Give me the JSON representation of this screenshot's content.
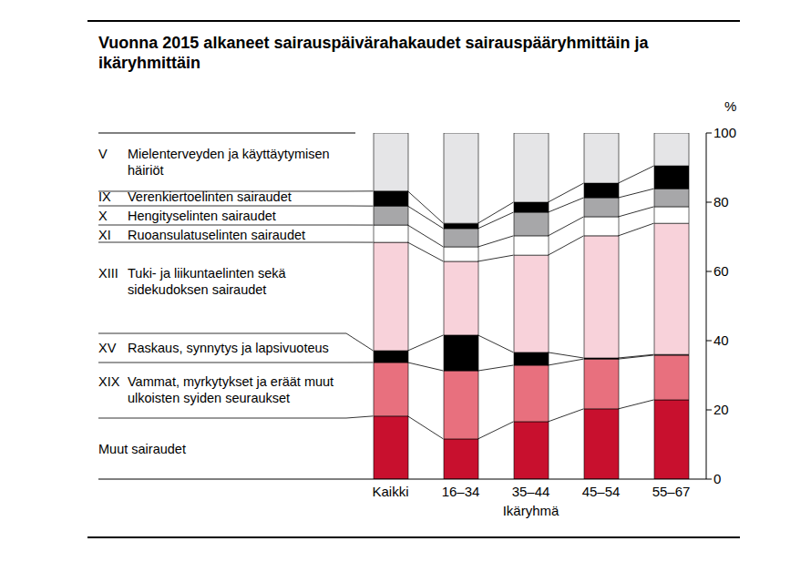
{
  "chart_data": {
    "type": "bar",
    "stacked": true,
    "title": "Vuonna 2015 alkaneet sairauspäivärahakaudet sairauspääryhmittäin ja ikäryhmittäin",
    "categories": [
      "Kaikki",
      "16–34",
      "35–44",
      "45–54",
      "55–67"
    ],
    "x_label": "Ikäryhmä",
    "y_label": "%",
    "ylim": [
      0,
      100
    ],
    "yticks": [
      0,
      20,
      40,
      60,
      80,
      100
    ],
    "grid": false,
    "series": [
      {
        "name": "Muut sairaudet",
        "color": "#c8102e",
        "values": [
          18.2,
          11.6,
          16.6,
          20.3,
          22.9
        ]
      },
      {
        "code": "XIX",
        "name": "Vammat, myrkytykset ja eräät muut ulkoisten syiden seuraukset",
        "color": "#e8707e",
        "values": [
          15.5,
          19.7,
          16.3,
          14.4,
          12.9
        ]
      },
      {
        "code": "XV",
        "name": "Raskaus, synnytys ja lapsivuoteus",
        "color": "#000000",
        "values": [
          3.4,
          10.3,
          3.7,
          0.3,
          0.2
        ]
      },
      {
        "code": "XIII",
        "name": "Tuki- ja liikuntaelinten sekä sidekudoksen sairaudet",
        "color": "#f8d2da",
        "values": [
          31.3,
          21.3,
          28.1,
          35.3,
          37.9
        ]
      },
      {
        "code": "XI",
        "name": "Ruoansulatuselinten sairaudet",
        "color": "#ffffff",
        "values": [
          5.0,
          4.2,
          5.6,
          5.5,
          4.8
        ]
      },
      {
        "code": "X",
        "name": "Hengityselinten sairaudet",
        "color": "#a7a7a9",
        "values": [
          5.5,
          5.3,
          6.8,
          5.5,
          5.2
        ]
      },
      {
        "code": "IX",
        "name": "Verenkiertoelinten sairaudet",
        "color": "#000000",
        "values": [
          4.3,
          1.5,
          2.9,
          4.2,
          6.6
        ]
      },
      {
        "code": "V",
        "name": "Mielenterveyden ja käyttäytymisen häiriöt",
        "color": "#e5e5e7",
        "values": [
          16.8,
          26.1,
          20.0,
          14.5,
          9.5
        ]
      }
    ]
  }
}
